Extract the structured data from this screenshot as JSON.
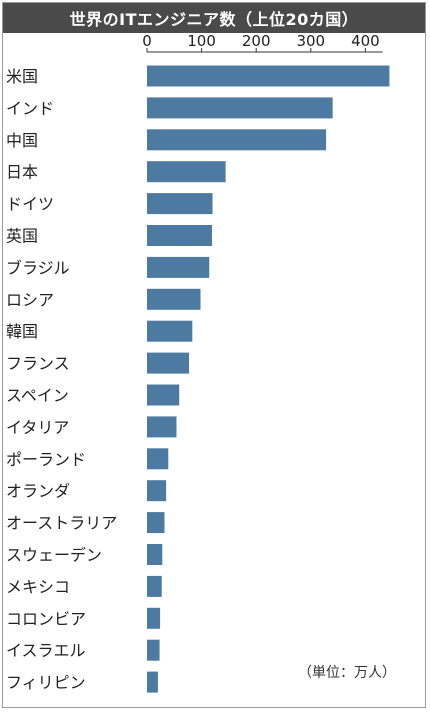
{
  "chart_data": {
    "type": "bar",
    "orientation": "horizontal",
    "title": "世界のITエンジニア数（上位20カ国）",
    "unit_note": "（単位：万人）",
    "xlim": [
      0,
      450
    ],
    "ticks": [
      0,
      100,
      200,
      300,
      400
    ],
    "categories": [
      "米国",
      "インド",
      "中国",
      "日本",
      "ドイツ",
      "英国",
      "ブラジル",
      "ロシア",
      "韓国",
      "フランス",
      "スペイン",
      "イタリア",
      "ポーランド",
      "オランダ",
      "オーストラリア",
      "スウェーデン",
      "メキシコ",
      "コロンビア",
      "イスラエル",
      "フィリピン"
    ],
    "values": [
      444,
      340,
      328,
      144,
      120,
      119,
      114,
      98,
      83,
      77,
      59,
      54,
      39,
      35,
      32,
      28,
      27,
      24,
      23,
      20
    ],
    "bar_color": "#4d7aa0"
  }
}
